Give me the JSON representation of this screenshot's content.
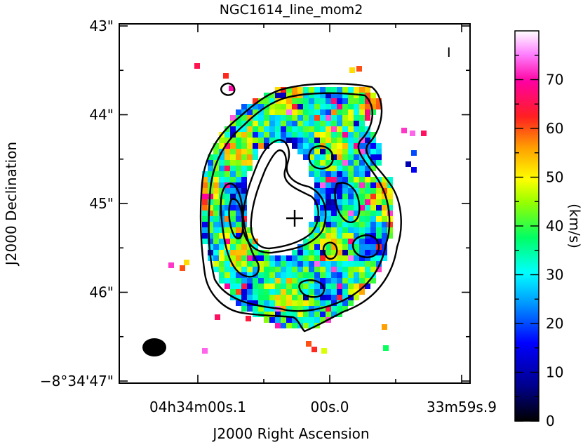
{
  "chart_data": {
    "type": "heatmap",
    "title": "NGC1614_line_mom2",
    "xlabel": "J2000 Right Ascension",
    "ylabel": "J2000 Declination",
    "colorbar_label": "(km/s)",
    "colorbar_range": [
      0,
      80
    ],
    "colorbar_ticks": [
      "0",
      "10",
      "20",
      "30",
      "40",
      "50",
      "60",
      "70"
    ],
    "y_ticks": [
      {
        "label": "43\"",
        "value": 43
      },
      {
        "label": "44\"",
        "value": 44
      },
      {
        "label": "45\"",
        "value": 45
      },
      {
        "label": "46\"",
        "value": 46
      },
      {
        "label": "−8°34'47\"",
        "value": 47
      }
    ],
    "x_ticks": [
      {
        "label": "04h34m00s.1",
        "value": 0.1
      },
      {
        "label": "00s.0",
        "value": 0.0
      },
      {
        "label": "33m59s.9",
        "value": -0.1
      }
    ],
    "annotation": "I",
    "colormap": [
      "#000000",
      "#00008c",
      "#0000ff",
      "#0096ff",
      "#00ffff",
      "#00ff64",
      "#96ff00",
      "#ffff00",
      "#ffa000",
      "#ff2020",
      "#ff00a0",
      "#ff80ff",
      "#ffffff"
    ]
  }
}
